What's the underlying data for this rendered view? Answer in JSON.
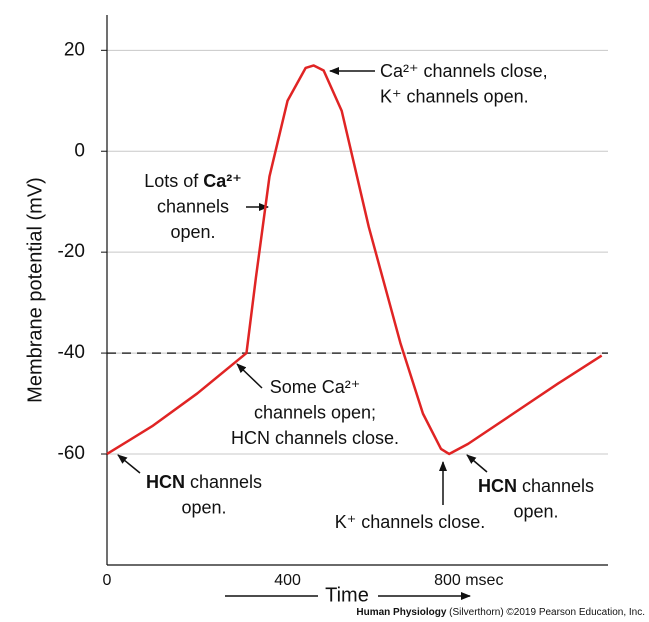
{
  "chart_data": {
    "type": "line",
    "y_label": "Membrane potential (mV)",
    "x_label": "Time",
    "x": [
      0,
      100,
      200,
      309,
      330,
      360,
      400,
      440,
      458,
      480,
      520,
      580,
      650,
      700,
      740,
      758,
      800,
      900,
      1000,
      1096
    ],
    "series": [
      {
        "color": "#e02424",
        "values": [
          -60,
          -54.5,
          -48,
          -40,
          -25,
          -5,
          10,
          16.5,
          17,
          16,
          8,
          -15,
          -38,
          -52,
          -59,
          -60,
          -58,
          -52,
          -46,
          -40.5
        ]
      }
    ],
    "xlim": [
      0,
      1110
    ],
    "ylim": [
      -82,
      27
    ],
    "xticks": [
      0,
      400,
      {
        "value": 800,
        "label": "800 msec"
      }
    ],
    "yticks": [
      -60,
      -40,
      -20,
      0,
      20
    ],
    "grid": true,
    "threshold": -40,
    "annotations": [
      {
        "anchor": "start",
        "x": 380,
        "y": 72,
        "lines": [
          [
            "Ca²⁺ channels close,"
          ],
          [
            "K⁺ channels open."
          ]
        ]
      },
      {
        "anchor": "middle",
        "x": 193,
        "y": 182,
        "lines": [
          [
            "Lots of ",
            {
              "text": "Ca²⁺",
              "bold": true
            }
          ],
          [
            "channels"
          ],
          [
            "open."
          ]
        ]
      },
      {
        "anchor": "middle",
        "x": 315,
        "y": 388,
        "lines": [
          [
            "Some Ca²⁺"
          ],
          [
            "channels open;"
          ],
          [
            "HCN channels close."
          ]
        ]
      },
      {
        "anchor": "middle",
        "x": 204,
        "y": 483,
        "lines": [
          [
            {
              "text": "HCN",
              "bold": true
            },
            " channels"
          ],
          [
            "open."
          ]
        ]
      },
      {
        "anchor": "middle",
        "x": 410,
        "y": 523,
        "lines": [
          [
            "K⁺ channels close."
          ]
        ]
      },
      {
        "anchor": "middle",
        "x": 536,
        "y": 487,
        "lines": [
          [
            {
              "text": "HCN",
              "bold": true
            },
            " channels"
          ],
          [
            "open."
          ]
        ]
      }
    ],
    "credit": [
      {
        "text": "Human Physiology",
        "bold": true
      },
      " (Silverthorn) ©2019 Pearson Education, Inc."
    ]
  }
}
